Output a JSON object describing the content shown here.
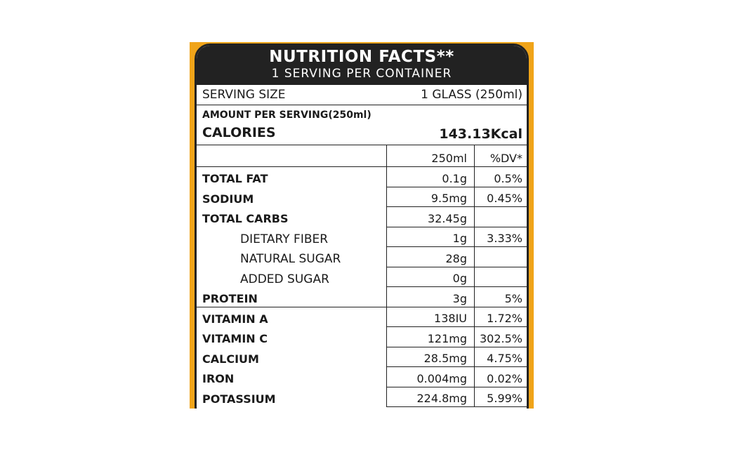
{
  "label": {
    "title": "NUTRITION FACTS**",
    "servings_per_container": "1 SERVING PER CONTAINER",
    "serving_size_label": "SERVING SIZE",
    "serving_size_value": "1 GLASS (250ml)",
    "amount_per_serving": "AMOUNT PER SERVING(250ml)",
    "calories_label": "CALORIES",
    "calories_value": "143.13Kcal",
    "columns": {
      "quantity": "250ml",
      "daily_value": "%DV*"
    },
    "nutrients": [
      {
        "name": "TOTAL FAT",
        "qty": "0.1g",
        "dv": "0.5%"
      },
      {
        "name": "SODIUM",
        "qty": "9.5mg",
        "dv": "0.45%"
      },
      {
        "name": "TOTAL CARBS",
        "qty": "32.45g",
        "dv": ""
      },
      {
        "name": "DIETARY FIBER",
        "qty": "1g",
        "dv": "3.33%"
      },
      {
        "name": "NATURAL SUGAR",
        "qty": "28g",
        "dv": ""
      },
      {
        "name": "ADDED SUGAR",
        "qty": "0g",
        "dv": ""
      },
      {
        "name": "PROTEIN",
        "qty": "3g",
        "dv": "5%"
      },
      {
        "name": "VITAMIN A",
        "qty": "138IU",
        "dv": "1.72%"
      },
      {
        "name": "VITAMIN C",
        "qty": "121mg",
        "dv": "302.5%"
      },
      {
        "name": "CALCIUM",
        "qty": "28.5mg",
        "dv": "4.75%"
      },
      {
        "name": "IRON",
        "qty": "0.004mg",
        "dv": "0.02%"
      },
      {
        "name": "POTASSIUM",
        "qty": "224.8mg",
        "dv": "5.99%"
      }
    ]
  },
  "colors": {
    "header_bg": "#222222",
    "border_accent": "#f0a419"
  }
}
